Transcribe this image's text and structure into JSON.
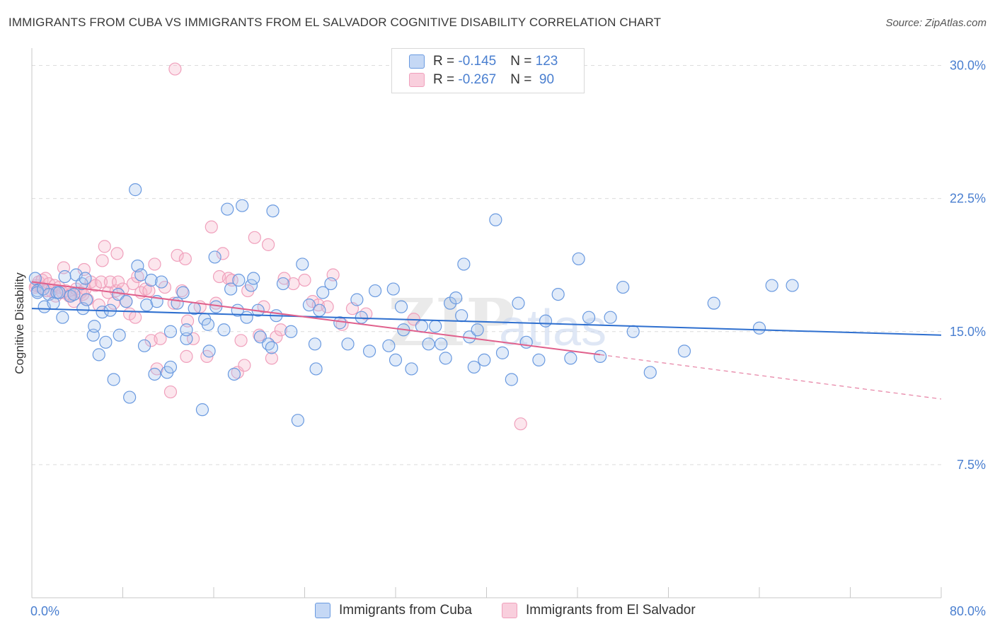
{
  "title": "IMMIGRANTS FROM CUBA VS IMMIGRANTS FROM EL SALVADOR COGNITIVE DISABILITY CORRELATION CHART",
  "source": "Source: ZipAtlas.com",
  "watermark": {
    "zip": "ZIP",
    "atlas": "atlas"
  },
  "legend": {
    "rows": [
      {
        "r_label": "R = ",
        "r_value": "-0.145",
        "n_label": "N = ",
        "n_value": "123"
      },
      {
        "r_label": "R = ",
        "r_value": "-0.267",
        "n_label": "N = ",
        "n_value": " 90"
      }
    ]
  },
  "chart_data": {
    "type": "scatter",
    "ylabel": "Cognitive Disability",
    "xlim": [
      0,
      80
    ],
    "ylim": [
      0,
      30.5
    ],
    "x_tick_labels": [
      "0.0%",
      "80.0%"
    ],
    "y_ticks": [
      7.5,
      15.0,
      22.5,
      30.0
    ],
    "y_tick_labels": [
      "7.5%",
      "15.0%",
      "22.5%",
      "30.0%"
    ],
    "grid": true,
    "legend_position": "top-center",
    "colors": {
      "cuba": "#6a9ae0",
      "cuba_line": "#2e6fcf",
      "elsalvador": "#f0a0bc",
      "elsalvador_line": "#e0608c"
    },
    "series": [
      {
        "name": "Immigrants from Cuba",
        "trend": {
          "x": [
            0,
            80
          ],
          "y": [
            16.3,
            14.8
          ]
        },
        "points": [
          [
            0.3,
            18.0
          ],
          [
            0.5,
            17.3
          ],
          [
            0.5,
            17.2
          ],
          [
            1.0,
            17.4
          ],
          [
            1.1,
            16.4
          ],
          [
            1.5,
            17.1
          ],
          [
            1.9,
            16.6
          ],
          [
            2.2,
            17.2
          ],
          [
            2.4,
            17.2
          ],
          [
            2.7,
            15.8
          ],
          [
            2.9,
            18.1
          ],
          [
            3.4,
            17.0
          ],
          [
            3.7,
            17.1
          ],
          [
            3.9,
            18.2
          ],
          [
            4.4,
            17.7
          ],
          [
            4.5,
            16.3
          ],
          [
            4.7,
            18.0
          ],
          [
            4.8,
            16.8
          ],
          [
            5.4,
            14.8
          ],
          [
            5.5,
            15.3
          ],
          [
            5.9,
            13.7
          ],
          [
            6.2,
            16.1
          ],
          [
            6.5,
            14.4
          ],
          [
            6.9,
            16.2
          ],
          [
            7.2,
            12.3
          ],
          [
            7.6,
            17.1
          ],
          [
            7.7,
            14.8
          ],
          [
            8.3,
            16.7
          ],
          [
            8.6,
            11.3
          ],
          [
            9.1,
            23.0
          ],
          [
            9.3,
            18.7
          ],
          [
            9.6,
            18.2
          ],
          [
            9.9,
            14.2
          ],
          [
            10.1,
            16.5
          ],
          [
            10.5,
            17.9
          ],
          [
            10.8,
            12.6
          ],
          [
            11.0,
            16.7
          ],
          [
            11.4,
            17.8
          ],
          [
            11.9,
            12.7
          ],
          [
            12.2,
            13.0
          ],
          [
            12.2,
            15.0
          ],
          [
            12.8,
            16.6
          ],
          [
            13.3,
            17.2
          ],
          [
            13.6,
            14.6
          ],
          [
            13.6,
            15.1
          ],
          [
            14.3,
            16.3
          ],
          [
            15.0,
            10.6
          ],
          [
            15.2,
            15.7
          ],
          [
            15.5,
            15.4
          ],
          [
            15.6,
            13.9
          ],
          [
            16.1,
            19.2
          ],
          [
            16.2,
            16.4
          ],
          [
            16.9,
            15.1
          ],
          [
            17.2,
            21.9
          ],
          [
            17.5,
            17.4
          ],
          [
            17.8,
            12.6
          ],
          [
            18.1,
            16.2
          ],
          [
            18.2,
            17.9
          ],
          [
            18.5,
            22.1
          ],
          [
            18.9,
            15.8
          ],
          [
            19.3,
            17.6
          ],
          [
            19.5,
            18.0
          ],
          [
            19.9,
            16.2
          ],
          [
            20.1,
            14.7
          ],
          [
            20.8,
            14.3
          ],
          [
            21.1,
            14.1
          ],
          [
            21.2,
            21.8
          ],
          [
            21.5,
            15.9
          ],
          [
            22.1,
            17.7
          ],
          [
            22.8,
            15.0
          ],
          [
            23.4,
            10.0
          ],
          [
            23.8,
            18.8
          ],
          [
            24.4,
            16.5
          ],
          [
            24.9,
            14.3
          ],
          [
            25.0,
            12.9
          ],
          [
            25.3,
            16.2
          ],
          [
            25.6,
            17.2
          ],
          [
            26.3,
            17.7
          ],
          [
            27.1,
            15.5
          ],
          [
            27.8,
            14.3
          ],
          [
            28.6,
            16.8
          ],
          [
            29.0,
            15.8
          ],
          [
            29.7,
            13.9
          ],
          [
            30.2,
            17.3
          ],
          [
            31.4,
            14.2
          ],
          [
            31.8,
            17.4
          ],
          [
            32.0,
            13.4
          ],
          [
            32.5,
            16.4
          ],
          [
            32.7,
            15.1
          ],
          [
            33.4,
            12.9
          ],
          [
            34.3,
            15.3
          ],
          [
            34.9,
            14.3
          ],
          [
            35.5,
            15.3
          ],
          [
            36.0,
            14.3
          ],
          [
            36.4,
            13.5
          ],
          [
            36.8,
            16.6
          ],
          [
            37.3,
            16.9
          ],
          [
            37.8,
            15.9
          ],
          [
            38.0,
            18.8
          ],
          [
            38.5,
            14.7
          ],
          [
            38.9,
            13.0
          ],
          [
            39.2,
            15.1
          ],
          [
            39.8,
            13.4
          ],
          [
            40.8,
            21.3
          ],
          [
            41.4,
            13.8
          ],
          [
            42.2,
            12.3
          ],
          [
            42.8,
            16.6
          ],
          [
            43.5,
            14.4
          ],
          [
            44.6,
            13.4
          ],
          [
            45.2,
            15.6
          ],
          [
            46.3,
            17.1
          ],
          [
            47.4,
            13.5
          ],
          [
            48.1,
            19.1
          ],
          [
            49.0,
            15.8
          ],
          [
            50.0,
            13.6
          ],
          [
            50.9,
            15.8
          ],
          [
            52.0,
            17.5
          ],
          [
            52.9,
            15.0
          ],
          [
            54.4,
            12.7
          ],
          [
            57.4,
            13.9
          ],
          [
            60.0,
            16.6
          ],
          [
            64.0,
            15.2
          ],
          [
            65.1,
            17.6
          ],
          [
            66.9,
            17.6
          ]
        ]
      },
      {
        "name": "Immigrants from El Salvador",
        "trend": {
          "x": [
            0,
            50
          ],
          "y": [
            17.8,
            13.7
          ]
        },
        "trend_dashed": {
          "x": [
            50,
            80
          ],
          "y": [
            13.7,
            11.2
          ]
        },
        "points": [
          [
            0.3,
            17.5
          ],
          [
            0.4,
            17.6
          ],
          [
            0.6,
            17.8
          ],
          [
            0.8,
            17.5
          ],
          [
            0.9,
            17.9
          ],
          [
            1.2,
            18.0
          ],
          [
            1.3,
            17.3
          ],
          [
            1.5,
            17.7
          ],
          [
            1.7,
            17.3
          ],
          [
            2.0,
            17.6
          ],
          [
            2.1,
            17.0
          ],
          [
            2.4,
            17.5
          ],
          [
            2.7,
            17.2
          ],
          [
            2.8,
            18.6
          ],
          [
            3.0,
            17.3
          ],
          [
            3.3,
            17.0
          ],
          [
            3.4,
            17.1
          ],
          [
            3.7,
            16.7
          ],
          [
            3.9,
            17.4
          ],
          [
            4.3,
            17.2
          ],
          [
            4.5,
            17.1
          ],
          [
            4.6,
            18.5
          ],
          [
            4.7,
            17.4
          ],
          [
            4.9,
            16.8
          ],
          [
            5.2,
            17.8
          ],
          [
            5.6,
            17.6
          ],
          [
            5.9,
            16.5
          ],
          [
            6.1,
            17.8
          ],
          [
            6.2,
            19.0
          ],
          [
            6.4,
            19.8
          ],
          [
            6.7,
            17.2
          ],
          [
            6.9,
            17.8
          ],
          [
            7.2,
            16.6
          ],
          [
            7.4,
            17.3
          ],
          [
            7.5,
            19.4
          ],
          [
            7.6,
            17.8
          ],
          [
            8.0,
            17.4
          ],
          [
            8.3,
            16.7
          ],
          [
            8.6,
            16.0
          ],
          [
            8.9,
            17.7
          ],
          [
            9.1,
            15.8
          ],
          [
            9.3,
            18.1
          ],
          [
            9.6,
            17.2
          ],
          [
            10.0,
            17.4
          ],
          [
            10.3,
            17.3
          ],
          [
            10.5,
            14.5
          ],
          [
            10.8,
            18.8
          ],
          [
            11.0,
            12.9
          ],
          [
            11.3,
            14.6
          ],
          [
            11.7,
            17.5
          ],
          [
            12.2,
            11.6
          ],
          [
            12.5,
            16.6
          ],
          [
            12.8,
            19.3
          ],
          [
            13.2,
            17.3
          ],
          [
            13.5,
            19.1
          ],
          [
            13.6,
            13.6
          ],
          [
            13.7,
            15.6
          ],
          [
            14.2,
            14.6
          ],
          [
            14.8,
            16.4
          ],
          [
            15.4,
            13.6
          ],
          [
            15.8,
            20.9
          ],
          [
            16.2,
            16.6
          ],
          [
            16.5,
            18.1
          ],
          [
            16.8,
            19.4
          ],
          [
            17.3,
            18.0
          ],
          [
            17.6,
            17.9
          ],
          [
            18.1,
            12.7
          ],
          [
            18.4,
            14.5
          ],
          [
            18.7,
            13.1
          ],
          [
            19.0,
            17.3
          ],
          [
            19.6,
            20.3
          ],
          [
            20.0,
            14.8
          ],
          [
            20.4,
            16.4
          ],
          [
            20.8,
            19.9
          ],
          [
            21.1,
            13.5
          ],
          [
            21.5,
            14.7
          ],
          [
            21.9,
            15.1
          ],
          [
            22.2,
            18.0
          ],
          [
            23.0,
            17.7
          ],
          [
            24.0,
            17.9
          ],
          [
            24.7,
            16.7
          ],
          [
            25.2,
            16.5
          ],
          [
            26.0,
            16.4
          ],
          [
            26.5,
            18.2
          ],
          [
            27.3,
            15.4
          ],
          [
            28.2,
            16.3
          ],
          [
            29.4,
            16.0
          ],
          [
            33.6,
            15.7
          ],
          [
            43.0,
            9.8
          ],
          [
            12.6,
            29.8
          ]
        ]
      }
    ]
  },
  "bottom_legend": [
    "Immigrants from Cuba",
    "Immigrants from El Salvador"
  ]
}
